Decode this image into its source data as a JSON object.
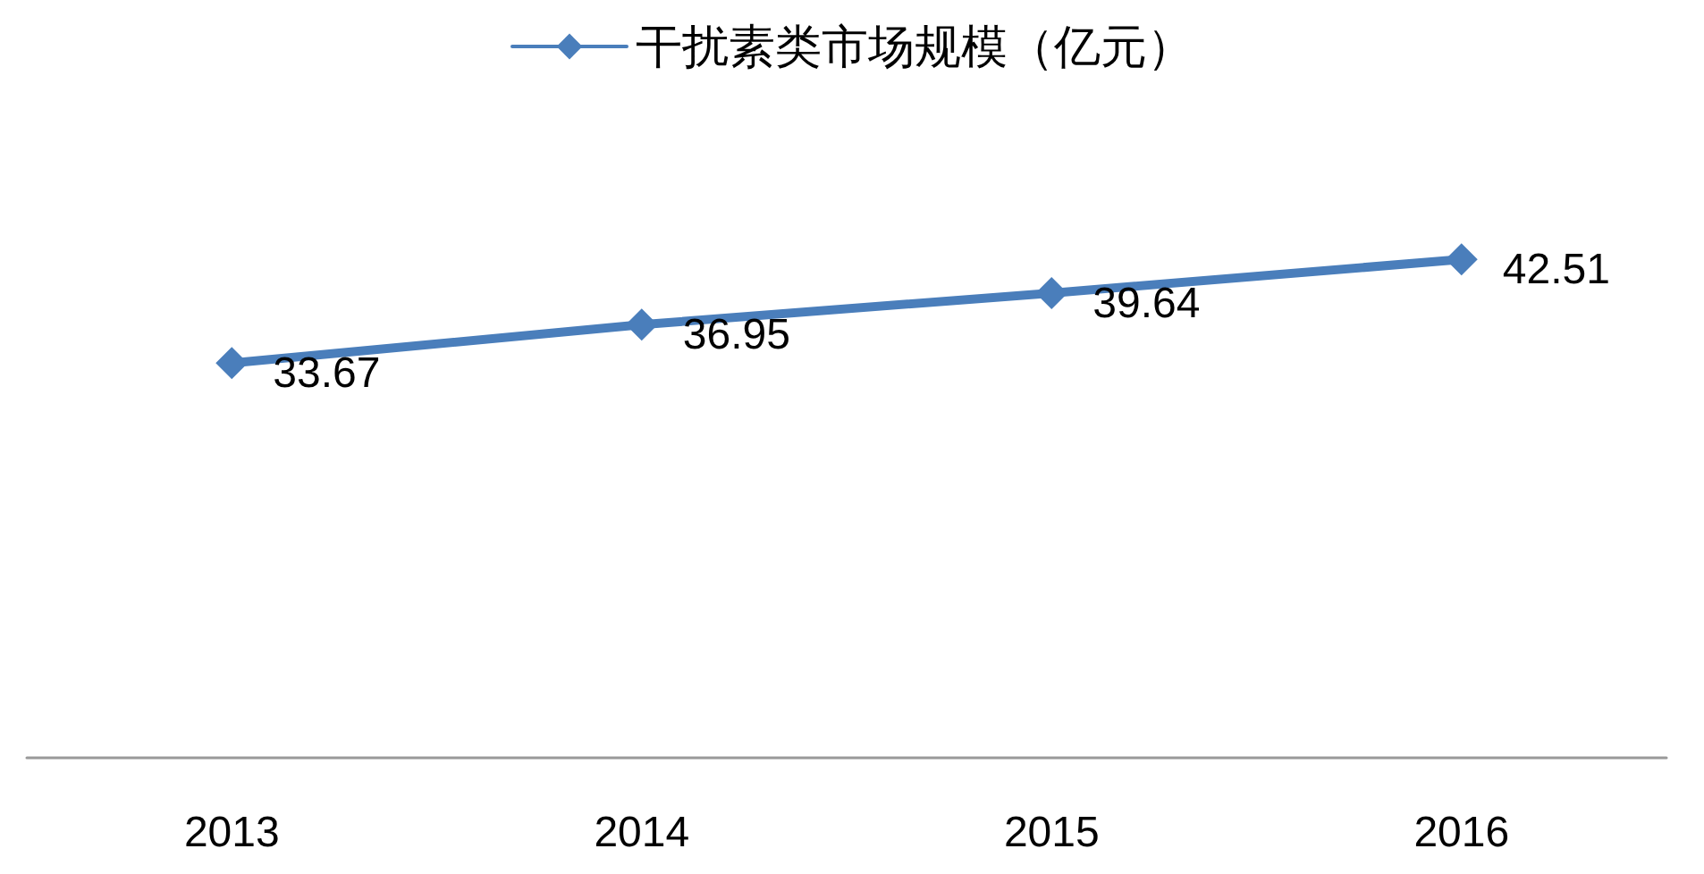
{
  "chart_data": {
    "type": "line",
    "categories": [
      "2013",
      "2014",
      "2015",
      "2016"
    ],
    "series": [
      {
        "name": "干扰素类市场规模（亿元）",
        "color": "#4a7ebb",
        "values": [
          33.67,
          36.95,
          39.64,
          42.51
        ]
      }
    ],
    "tick_labels": "x",
    "data_labels": true,
    "legend": "top",
    "marker": "diamond",
    "grid": false
  }
}
